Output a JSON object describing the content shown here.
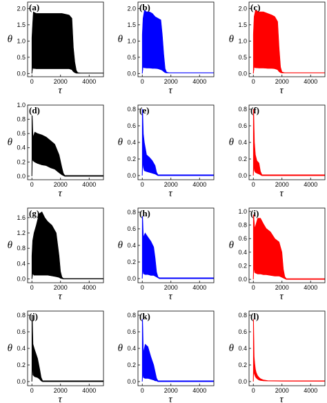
{
  "chart_data": [
    {
      "label": "(a)",
      "type": "area",
      "color": "#000000",
      "xlabel": "τ",
      "ylabel": "θ",
      "xlim": [
        -300,
        5000
      ],
      "ylim": [
        -0.1,
        2.2
      ],
      "xticks": [
        0,
        2000,
        4000
      ],
      "yticks": [
        0.0,
        0.5,
        1.0,
        1.5,
        2.0
      ],
      "x": [
        0,
        50,
        100,
        300,
        600,
        900,
        1200,
        1500,
        1800,
        2100,
        2400,
        2600,
        2800,
        2900,
        3000,
        3100,
        3200,
        3400,
        3700,
        4000,
        5000
      ],
      "upper": [
        1.1,
        1.55,
        1.9,
        1.85,
        1.85,
        1.85,
        1.85,
        1.85,
        1.85,
        1.85,
        1.82,
        1.8,
        1.7,
        0.8,
        0.35,
        0.1,
        0.03,
        0.01,
        0.01,
        0.01,
        0.01
      ],
      "lower": [
        0.0,
        0.2,
        0.16,
        0.15,
        0.15,
        0.15,
        0.15,
        0.15,
        0.15,
        0.15,
        0.15,
        0.15,
        0.12,
        0.06,
        0.03,
        0.01,
        0.01,
        0.01,
        0.01,
        0.01,
        0.01
      ]
    },
    {
      "label": "(b)",
      "type": "area",
      "color": "#0000ff",
      "xlabel": "τ",
      "ylabel": "θ",
      "xlim": [
        -300,
        5000
      ],
      "ylim": [
        -0.1,
        2.2
      ],
      "xticks": [
        0,
        2000,
        4000
      ],
      "yticks": [
        0.0,
        0.5,
        1.0,
        1.5,
        2.0
      ],
      "x": [
        0,
        50,
        150,
        300,
        500,
        700,
        900,
        1100,
        1300,
        1400,
        1500,
        1600,
        1700,
        1900,
        2500,
        5000
      ],
      "upper": [
        1.2,
        1.7,
        1.95,
        1.9,
        1.9,
        1.85,
        1.75,
        1.7,
        1.65,
        1.2,
        0.6,
        0.15,
        0.04,
        0.02,
        0.02,
        0.02
      ],
      "lower": [
        0.0,
        0.2,
        0.18,
        0.17,
        0.17,
        0.16,
        0.16,
        0.15,
        0.12,
        0.1,
        0.06,
        0.03,
        0.02,
        0.02,
        0.02,
        0.02
      ]
    },
    {
      "label": "(c)",
      "type": "area",
      "color": "#ff0000",
      "xlabel": "τ",
      "ylabel": "θ",
      "xlim": [
        -300,
        5000
      ],
      "ylim": [
        -0.1,
        2.2
      ],
      "xticks": [
        0,
        2000,
        4000
      ],
      "yticks": [
        0.0,
        0.5,
        1.0,
        1.5,
        2.0
      ],
      "x": [
        0,
        50,
        150,
        400,
        700,
        1000,
        1300,
        1500,
        1700,
        1800,
        1900,
        2000,
        2200,
        5000
      ],
      "upper": [
        1.2,
        1.75,
        1.95,
        1.9,
        1.9,
        1.85,
        1.8,
        1.75,
        1.6,
        0.8,
        0.2,
        0.05,
        0.02,
        0.02
      ],
      "lower": [
        0.0,
        0.2,
        0.18,
        0.17,
        0.17,
        0.16,
        0.16,
        0.15,
        0.12,
        0.06,
        0.03,
        0.02,
        0.02,
        0.02
      ]
    },
    {
      "label": "(d)",
      "type": "area",
      "color": "#000000",
      "xlabel": "τ",
      "ylabel": "θ",
      "xlim": [
        -300,
        5000
      ],
      "ylim": [
        -0.05,
        1.0
      ],
      "xticks": [
        0,
        2000,
        4000
      ],
      "yticks": [
        0.0,
        0.2,
        0.4,
        0.6,
        0.8,
        1.0
      ],
      "x": [
        0,
        30,
        80,
        200,
        400,
        700,
        1000,
        1300,
        1600,
        1900,
        2100,
        2200,
        2300,
        5000
      ],
      "upper": [
        0.85,
        0.85,
        0.55,
        0.62,
        0.6,
        0.58,
        0.55,
        0.5,
        0.45,
        0.3,
        0.12,
        0.04,
        0.01,
        0.01
      ],
      "lower": [
        0.0,
        0.3,
        0.22,
        0.2,
        0.18,
        0.16,
        0.15,
        0.12,
        0.1,
        0.05,
        0.02,
        0.01,
        0.0,
        0.0
      ]
    },
    {
      "label": "(e)",
      "type": "area",
      "color": "#0000ff",
      "xlabel": "τ",
      "ylabel": "θ",
      "xlim": [
        -300,
        5000
      ],
      "ylim": [
        -0.05,
        0.85
      ],
      "xticks": [
        0,
        2000,
        4000
      ],
      "yticks": [
        0.0,
        0.2,
        0.4,
        0.6,
        0.8
      ],
      "x": [
        0,
        30,
        80,
        150,
        300,
        500,
        700,
        900,
        1000,
        1100,
        5000
      ],
      "upper": [
        0.8,
        0.8,
        0.5,
        0.4,
        0.25,
        0.22,
        0.18,
        0.12,
        0.04,
        0.01,
        0.01
      ],
      "lower": [
        0.0,
        0.2,
        0.1,
        0.06,
        0.05,
        0.04,
        0.03,
        0.02,
        0.01,
        0.0,
        0.0
      ]
    },
    {
      "label": "(f)",
      "type": "area",
      "color": "#ff0000",
      "xlabel": "τ",
      "ylabel": "θ",
      "xlim": [
        -300,
        5000
      ],
      "ylim": [
        -0.05,
        0.85
      ],
      "xticks": [
        0,
        2000,
        4000
      ],
      "yticks": [
        0.0,
        0.2,
        0.4,
        0.6,
        0.8
      ],
      "x": [
        0,
        30,
        80,
        150,
        250,
        400,
        500,
        600,
        5000
      ],
      "upper": [
        0.8,
        0.8,
        0.4,
        0.25,
        0.18,
        0.15,
        0.05,
        0.01,
        0.01
      ],
      "lower": [
        0.0,
        0.15,
        0.06,
        0.04,
        0.03,
        0.02,
        0.01,
        0.0,
        0.0
      ]
    },
    {
      "label": "(g)",
      "type": "area",
      "color": "#000000",
      "xlabel": "τ",
      "ylabel": "θ",
      "xlim": [
        -300,
        5000
      ],
      "ylim": [
        -0.1,
        1.85
      ],
      "xticks": [
        0,
        2000,
        4000
      ],
      "yticks": [
        0.0,
        0.4,
        0.8,
        1.2,
        1.6
      ],
      "x": [
        0,
        50,
        150,
        300,
        500,
        700,
        900,
        1100,
        1400,
        1700,
        1900,
        2000,
        2100,
        2200,
        5000
      ],
      "upper": [
        0.6,
        1.0,
        1.2,
        1.4,
        1.7,
        1.75,
        1.6,
        1.5,
        1.4,
        1.2,
        0.6,
        0.2,
        0.05,
        0.01,
        0.01
      ],
      "lower": [
        0.0,
        0.15,
        0.1,
        0.1,
        0.1,
        0.1,
        0.1,
        0.1,
        0.08,
        0.06,
        0.04,
        0.02,
        0.01,
        0.0,
        0.0
      ]
    },
    {
      "label": "(h)",
      "type": "area",
      "color": "#0000ff",
      "xlabel": "τ",
      "ylabel": "θ",
      "xlim": [
        -300,
        5000
      ],
      "ylim": [
        -0.05,
        0.85
      ],
      "xticks": [
        0,
        2000,
        4000
      ],
      "yticks": [
        0.0,
        0.2,
        0.4,
        0.6,
        0.8
      ],
      "x": [
        0,
        30,
        80,
        200,
        400,
        600,
        800,
        900,
        1000,
        1100,
        1200,
        5000
      ],
      "upper": [
        0.75,
        0.75,
        0.5,
        0.55,
        0.5,
        0.45,
        0.38,
        0.25,
        0.08,
        0.02,
        0.01,
        0.01
      ],
      "lower": [
        0.0,
        0.15,
        0.06,
        0.05,
        0.05,
        0.04,
        0.04,
        0.03,
        0.02,
        0.01,
        0.0,
        0.0
      ]
    },
    {
      "label": "(i)",
      "type": "area",
      "color": "#ff0000",
      "xlabel": "τ",
      "ylabel": "θ",
      "xlim": [
        -300,
        5000
      ],
      "ylim": [
        -0.05,
        1.05
      ],
      "xticks": [
        0,
        2000,
        4000
      ],
      "yticks": [
        0.0,
        0.2,
        0.4,
        0.6,
        0.8,
        1.0
      ],
      "x": [
        0,
        30,
        100,
        300,
        500,
        700,
        900,
        1200,
        1500,
        1800,
        2000,
        2100,
        2200,
        2300,
        5000
      ],
      "upper": [
        0.95,
        0.95,
        0.75,
        0.9,
        0.9,
        0.82,
        0.75,
        0.7,
        0.6,
        0.55,
        0.4,
        0.15,
        0.04,
        0.01,
        0.01
      ],
      "lower": [
        0.0,
        0.2,
        0.1,
        0.08,
        0.08,
        0.07,
        0.07,
        0.06,
        0.05,
        0.05,
        0.03,
        0.02,
        0.01,
        0.0,
        0.0
      ]
    },
    {
      "label": "(j)",
      "type": "area",
      "color": "#000000",
      "xlabel": "τ",
      "ylabel": "θ",
      "xlim": [
        -300,
        5000
      ],
      "ylim": [
        -0.05,
        0.85
      ],
      "xticks": [
        0,
        2000,
        4000
      ],
      "yticks": [
        0.0,
        0.2,
        0.4,
        0.6,
        0.8
      ],
      "x": [
        0,
        30,
        80,
        200,
        400,
        550,
        650,
        750,
        5000
      ],
      "upper": [
        0.8,
        0.8,
        0.45,
        0.38,
        0.28,
        0.15,
        0.05,
        0.01,
        0.01
      ],
      "lower": [
        0.0,
        0.25,
        0.08,
        0.06,
        0.05,
        0.03,
        0.01,
        0.0,
        0.0
      ]
    },
    {
      "label": "(k)",
      "type": "area",
      "color": "#0000ff",
      "xlabel": "τ",
      "ylabel": "θ",
      "xlim": [
        -300,
        5000
      ],
      "ylim": [
        -0.05,
        0.85
      ],
      "xticks": [
        0,
        2000,
        4000
      ],
      "yticks": [
        0.0,
        0.2,
        0.4,
        0.6,
        0.8
      ],
      "x": [
        0,
        30,
        80,
        200,
        400,
        600,
        800,
        900,
        1000,
        1100,
        5000
      ],
      "upper": [
        0.75,
        0.75,
        0.35,
        0.45,
        0.42,
        0.3,
        0.2,
        0.12,
        0.04,
        0.01,
        0.01
      ],
      "lower": [
        0.0,
        0.12,
        0.05,
        0.04,
        0.04,
        0.03,
        0.02,
        0.01,
        0.01,
        0.0,
        0.0
      ]
    },
    {
      "label": "(l)",
      "type": "line",
      "color": "#ff0000",
      "xlabel": "τ",
      "ylabel": "θ",
      "xlim": [
        -300,
        5000
      ],
      "ylim": [
        -0.05,
        0.85
      ],
      "xticks": [
        0,
        2000,
        4000
      ],
      "yticks": [
        0.0,
        0.2,
        0.4,
        0.6,
        0.8
      ],
      "x": [
        0,
        20,
        60,
        100,
        150,
        200,
        300,
        400,
        500,
        700,
        1000,
        2000,
        5000
      ],
      "upper": [
        0.75,
        0.75,
        0.3,
        0.22,
        0.15,
        0.11,
        0.07,
        0.05,
        0.035,
        0.02,
        0.012,
        0.01,
        0.01
      ],
      "lower": [
        0.0,
        0.15,
        0.1,
        0.08,
        0.06,
        0.045,
        0.03,
        0.02,
        0.015,
        0.01,
        0.008,
        0.006,
        0.005
      ]
    }
  ]
}
